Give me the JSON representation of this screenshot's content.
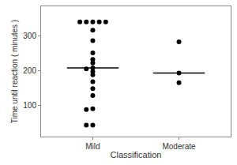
{
  "chart_data": {
    "type": "strip",
    "x_label": "Classification",
    "y_label": "Time until reaction ( minutes )",
    "categories": [
      "Mild",
      "Moderate"
    ],
    "values": [
      [
        340,
        340,
        340,
        340,
        340,
        316,
        286,
        251,
        232,
        222,
        208,
        205,
        197,
        188,
        168,
        148,
        128,
        90,
        88,
        43,
        43
      ],
      [
        283,
        193,
        165
      ]
    ],
    "medians": [
      208,
      193
    ],
    "color": "#000000",
    "ylim": [
      10,
      385
    ],
    "yticks": [
      100,
      200,
      300
    ],
    "grid": false
  }
}
